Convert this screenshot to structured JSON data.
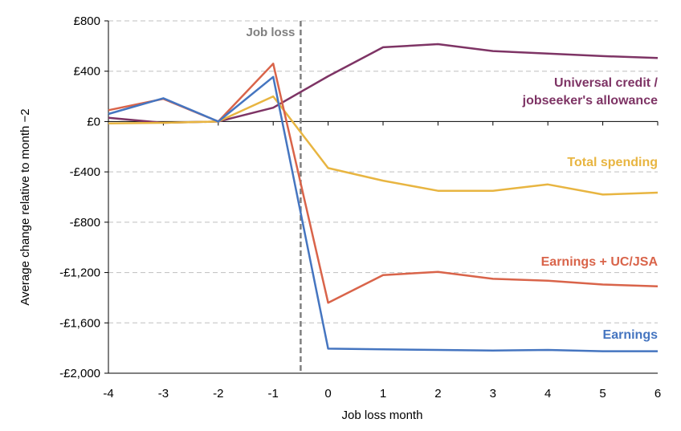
{
  "chart_data": {
    "type": "line",
    "title": "",
    "xlabel": "Job loss month",
    "ylabel": "Average change relative to month −2",
    "x": [
      -4,
      -3,
      -2,
      -1,
      0,
      1,
      2,
      3,
      4,
      5,
      6
    ],
    "xlim": [
      -4,
      6
    ],
    "ylim": [
      -2000,
      800
    ],
    "y_ticks": [
      800,
      400,
      0,
      -400,
      -800,
      -1200,
      -1600,
      -2000
    ],
    "y_tick_labels": [
      "£800",
      "£400",
      "£0",
      "-£400",
      "-£800",
      "-£1,200",
      "-£1,600",
      "-£2,000"
    ],
    "x_tick_labels": [
      "-4",
      "-3",
      "-2",
      "-1",
      "0",
      "1",
      "2",
      "3",
      "4",
      "5",
      "6"
    ],
    "grid": "horizontal dashed",
    "event_line": {
      "x": -0.5,
      "label": "Job loss",
      "color": "#7f7f7f"
    },
    "series": [
      {
        "name": "Universal credit / jobseeker's allowance",
        "label_lines": [
          "Universal credit /",
          "jobseeker's allowance"
        ],
        "color": "#7e3465",
        "values": [
          30,
          -10,
          0,
          110,
          360,
          590,
          615,
          560,
          540,
          520,
          505
        ]
      },
      {
        "name": "Total spending",
        "label_lines": [
          "Total spending"
        ],
        "color": "#e8b541",
        "values": [
          -15,
          -10,
          0,
          200,
          -370,
          -470,
          -550,
          -550,
          -500,
          -580,
          -565
        ]
      },
      {
        "name": "Earnings + UC/JSA",
        "label_lines": [
          "Earnings + UC/JSA"
        ],
        "color": "#d9644a",
        "values": [
          90,
          180,
          0,
          460,
          -1440,
          -1220,
          -1195,
          -1250,
          -1265,
          -1295,
          -1310
        ]
      },
      {
        "name": "Earnings",
        "label_lines": [
          "Earnings"
        ],
        "color": "#4575c0",
        "values": [
          60,
          185,
          0,
          355,
          -1805,
          -1810,
          -1815,
          -1820,
          -1815,
          -1825,
          -1825
        ]
      }
    ]
  }
}
